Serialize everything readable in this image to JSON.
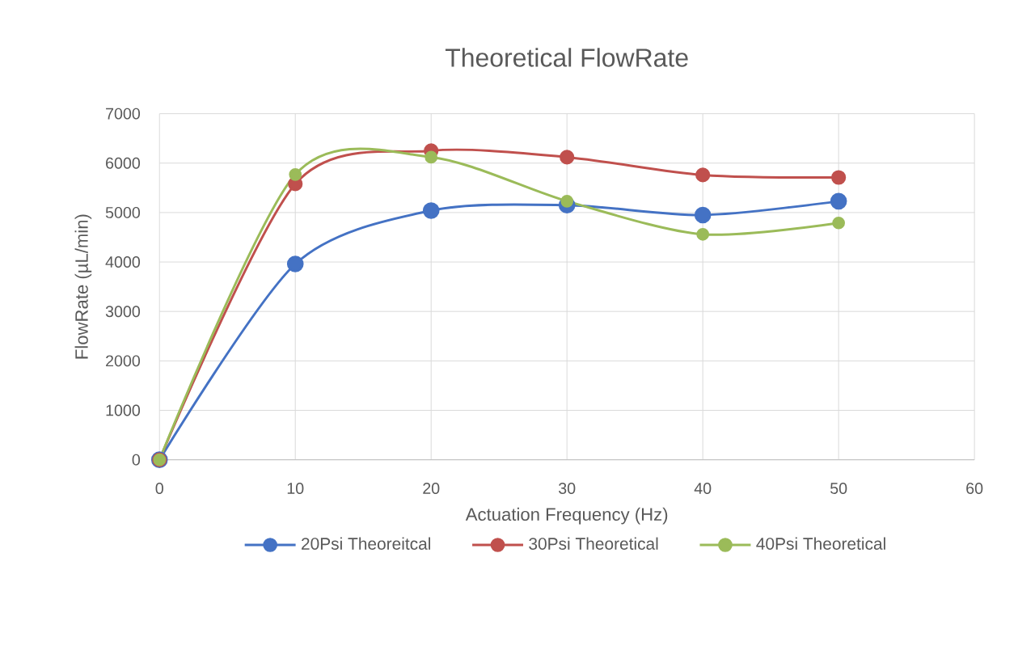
{
  "chart_data": {
    "type": "line",
    "title": "Theoretical FlowRate",
    "xlabel": "Actuation Frequency (Hz)",
    "ylabel": "FlowRate (µL/min)",
    "x": [
      0,
      10,
      20,
      30,
      40,
      50
    ],
    "series": [
      {
        "name": "20Psi Theoreitcal",
        "color": "#4472c4",
        "values": [
          0,
          3960,
          5040,
          5150,
          4950,
          5230
        ]
      },
      {
        "name": "30Psi Theoretical",
        "color": "#c0504d",
        "values": [
          0,
          5580,
          6250,
          6120,
          5760,
          5710
        ]
      },
      {
        "name": "40Psi Theoretical",
        "color": "#9bbb59",
        "values": [
          0,
          5770,
          6120,
          5230,
          4560,
          4790
        ]
      }
    ],
    "xlim": [
      0,
      60
    ],
    "xticks": [
      0,
      10,
      20,
      30,
      40,
      50,
      60
    ],
    "ylim": [
      0,
      7000
    ],
    "yticks": [
      0,
      1000,
      2000,
      3000,
      4000,
      5000,
      6000,
      7000
    ],
    "grid": true,
    "legend": "bottom",
    "marker": "circle",
    "line_style": "solid"
  }
}
